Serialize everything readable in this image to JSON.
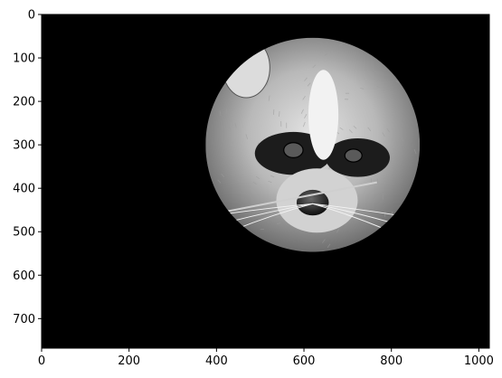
{
  "chart_data": {
    "type": "heatmap",
    "title": "",
    "xlabel": "",
    "ylabel": "",
    "colormap": "gray",
    "image_content": "grayscale raccoon face photo masked by a circle, black elsewhere",
    "image_extent": {
      "width": 1024,
      "height": 768
    },
    "circle_mask": {
      "center_x": 620,
      "center_y": 300,
      "radius": 245
    },
    "xlim": [
      0,
      1024
    ],
    "ylim": [
      768,
      0
    ],
    "xticks": [
      0,
      200,
      400,
      600,
      800,
      1000
    ],
    "yticks": [
      0,
      100,
      200,
      300,
      400,
      500,
      600,
      700
    ],
    "xtick_labels": [
      "0",
      "200",
      "400",
      "600",
      "800",
      "1000"
    ],
    "ytick_labels": [
      "0",
      "100",
      "200",
      "300",
      "400",
      "500",
      "600",
      "700"
    ],
    "colors": {
      "masked": "#000000",
      "axes": "#000000",
      "background": "#ffffff"
    }
  }
}
